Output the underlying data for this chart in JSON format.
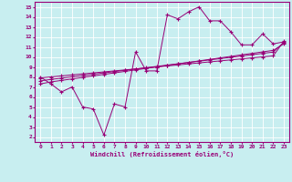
{
  "xlabel": "Windchill (Refroidissement éolien,°C)",
  "bg_color": "#c8eef0",
  "line_color": "#990077",
  "grid_color": "#b0d8da",
  "xlim": [
    -0.5,
    23.5
  ],
  "ylim": [
    1.5,
    15.5
  ],
  "xticks": [
    0,
    1,
    2,
    3,
    4,
    5,
    6,
    7,
    8,
    9,
    10,
    11,
    12,
    13,
    14,
    15,
    16,
    17,
    18,
    19,
    20,
    21,
    22,
    23
  ],
  "yticks": [
    2,
    3,
    4,
    5,
    6,
    7,
    8,
    9,
    10,
    11,
    12,
    13,
    14,
    15
  ],
  "line1_x": [
    0,
    1,
    2,
    3,
    4,
    5,
    6,
    7,
    8,
    9,
    10,
    11,
    12,
    13,
    14,
    15,
    16,
    17,
    18,
    19,
    20,
    21,
    22,
    23
  ],
  "line1_y": [
    8.0,
    7.3,
    6.5,
    7.0,
    5.0,
    4.8,
    2.2,
    5.3,
    5.0,
    10.5,
    8.6,
    8.6,
    14.2,
    13.8,
    14.5,
    15.0,
    13.6,
    13.6,
    12.5,
    11.2,
    11.2,
    12.3,
    11.3,
    11.5
  ],
  "line2_x": [
    0,
    1,
    2,
    3,
    4,
    5,
    6,
    7,
    8,
    9,
    10,
    11,
    12,
    13,
    14,
    15,
    16,
    17,
    18,
    19,
    20,
    21,
    22,
    23
  ],
  "line2_y": [
    7.3,
    7.5,
    7.65,
    7.8,
    7.95,
    8.1,
    8.25,
    8.4,
    8.55,
    8.7,
    8.85,
    9.0,
    9.15,
    9.3,
    9.45,
    9.6,
    9.75,
    9.9,
    10.05,
    10.2,
    10.35,
    10.5,
    10.65,
    11.3
  ],
  "line3_x": [
    0,
    1,
    2,
    3,
    4,
    5,
    6,
    7,
    8,
    9,
    10,
    11,
    12,
    13,
    14,
    15,
    16,
    17,
    18,
    19,
    20,
    21,
    22,
    23
  ],
  "line3_y": [
    7.6,
    7.75,
    7.88,
    8.01,
    8.14,
    8.27,
    8.4,
    8.53,
    8.66,
    8.79,
    8.92,
    9.05,
    9.18,
    9.31,
    9.44,
    9.57,
    9.7,
    9.83,
    9.96,
    10.09,
    10.22,
    10.35,
    10.48,
    11.45
  ],
  "line4_x": [
    0,
    1,
    2,
    3,
    4,
    5,
    6,
    7,
    8,
    9,
    10,
    11,
    12,
    13,
    14,
    15,
    16,
    17,
    18,
    19,
    20,
    21,
    22,
    23
  ],
  "line4_y": [
    7.9,
    8.0,
    8.1,
    8.2,
    8.3,
    8.4,
    8.5,
    8.6,
    8.7,
    8.8,
    8.9,
    9.0,
    9.1,
    9.2,
    9.3,
    9.4,
    9.5,
    9.6,
    9.7,
    9.8,
    9.9,
    10.0,
    10.1,
    11.55
  ]
}
